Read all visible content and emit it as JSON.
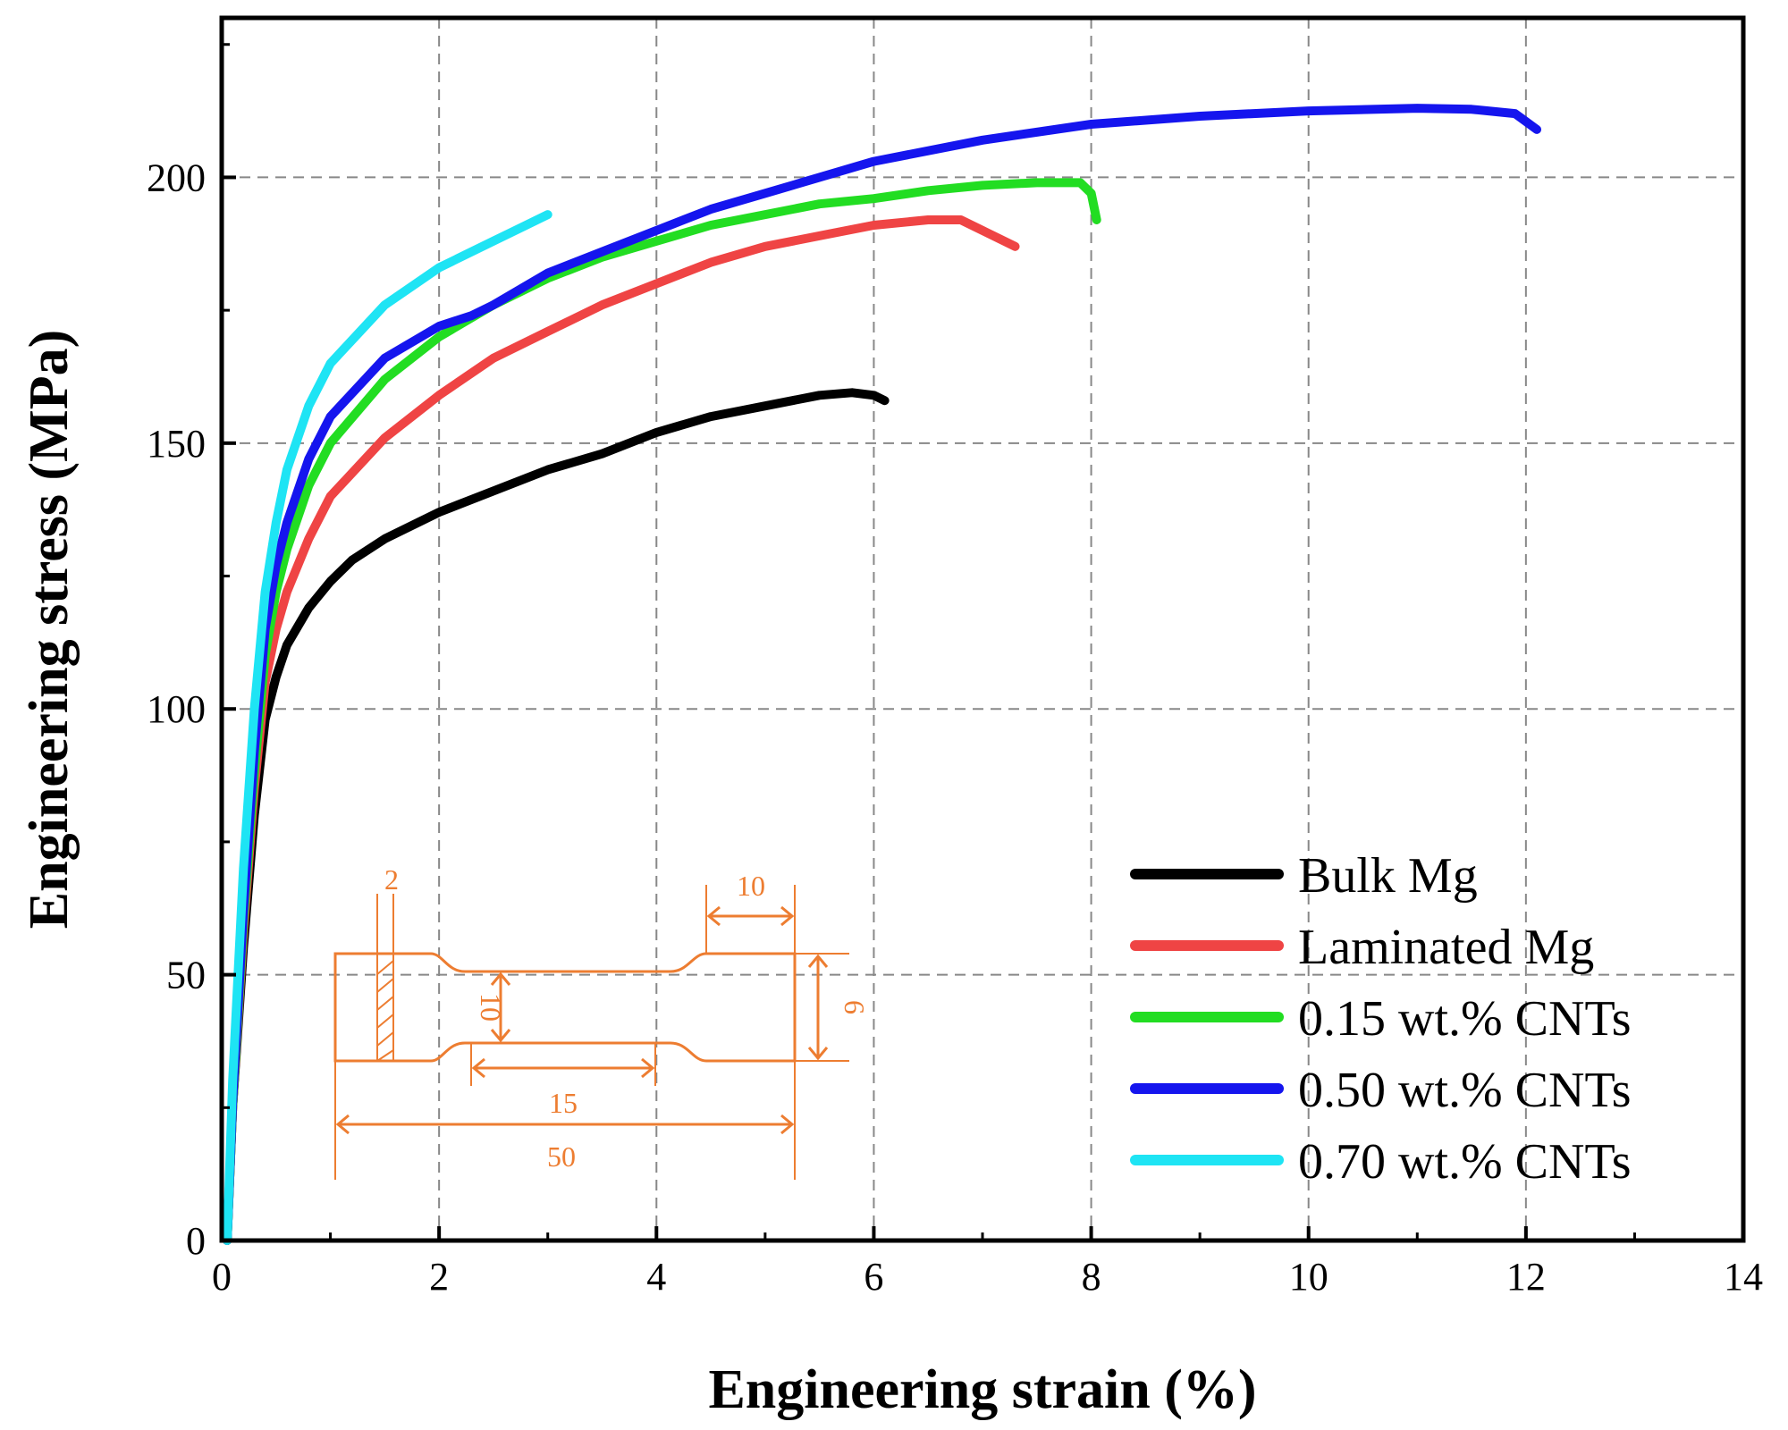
{
  "chart_data": {
    "type": "line",
    "title": "",
    "xlabel": "Engineering strain (%)",
    "ylabel": "Engineering stress (MPa)",
    "xlim": [
      0,
      14
    ],
    "ylim": [
      0,
      230
    ],
    "xticks": [
      "0",
      "2",
      "4",
      "6",
      "8",
      "10",
      "12",
      "14"
    ],
    "yticks": [
      "0",
      "50",
      "100",
      "150",
      "200"
    ],
    "grid": true,
    "legend_position": "bottom-right",
    "series": [
      {
        "name": "Bulk Mg",
        "color": "#000000",
        "points": [
          [
            0.05,
            0
          ],
          [
            0.1,
            25
          ],
          [
            0.2,
            55
          ],
          [
            0.3,
            80
          ],
          [
            0.4,
            98
          ],
          [
            0.5,
            106
          ],
          [
            0.6,
            112
          ],
          [
            0.8,
            119
          ],
          [
            1.0,
            124
          ],
          [
            1.2,
            128
          ],
          [
            1.5,
            132
          ],
          [
            2.0,
            137
          ],
          [
            2.5,
            141
          ],
          [
            3.0,
            145
          ],
          [
            3.5,
            148
          ],
          [
            4.0,
            152
          ],
          [
            4.5,
            155
          ],
          [
            5.0,
            157
          ],
          [
            5.5,
            159
          ],
          [
            5.8,
            159.5
          ],
          [
            6.0,
            159
          ],
          [
            6.1,
            158
          ]
        ]
      },
      {
        "name": "Laminated Mg",
        "color": "#ef4444",
        "points": [
          [
            0.05,
            0
          ],
          [
            0.1,
            25
          ],
          [
            0.2,
            58
          ],
          [
            0.3,
            85
          ],
          [
            0.4,
            105
          ],
          [
            0.5,
            115
          ],
          [
            0.6,
            122
          ],
          [
            0.8,
            132
          ],
          [
            1.0,
            140
          ],
          [
            1.5,
            151
          ],
          [
            2.0,
            159
          ],
          [
            2.5,
            166
          ],
          [
            3.0,
            171
          ],
          [
            3.5,
            176
          ],
          [
            4.0,
            180
          ],
          [
            4.5,
            184
          ],
          [
            5.0,
            187
          ],
          [
            5.5,
            189
          ],
          [
            6.0,
            191
          ],
          [
            6.5,
            192
          ],
          [
            6.8,
            192
          ],
          [
            7.0,
            190
          ],
          [
            7.3,
            187
          ]
        ]
      },
      {
        "name": "0.15 wt.% CNTs",
        "color": "#22dd22",
        "points": [
          [
            0.05,
            0
          ],
          [
            0.1,
            25
          ],
          [
            0.2,
            60
          ],
          [
            0.3,
            88
          ],
          [
            0.4,
            110
          ],
          [
            0.5,
            122
          ],
          [
            0.6,
            130
          ],
          [
            0.8,
            142
          ],
          [
            1.0,
            150
          ],
          [
            1.5,
            162
          ],
          [
            2.0,
            170
          ],
          [
            2.5,
            176
          ],
          [
            3.0,
            181
          ],
          [
            3.5,
            185
          ],
          [
            4.0,
            188
          ],
          [
            4.5,
            191
          ],
          [
            5.0,
            193
          ],
          [
            5.5,
            195
          ],
          [
            6.0,
            196
          ],
          [
            6.5,
            197.5
          ],
          [
            7.0,
            198.5
          ],
          [
            7.5,
            199
          ],
          [
            7.9,
            199
          ],
          [
            8.0,
            197
          ],
          [
            8.05,
            192
          ]
        ]
      },
      {
        "name": "0.50 wt.% CNTs",
        "color": "#1515ee",
        "points": [
          [
            0.05,
            0
          ],
          [
            0.1,
            26
          ],
          [
            0.2,
            62
          ],
          [
            0.3,
            92
          ],
          [
            0.4,
            115
          ],
          [
            0.5,
            127
          ],
          [
            0.6,
            135
          ],
          [
            0.8,
            147
          ],
          [
            1.0,
            155
          ],
          [
            1.5,
            166
          ],
          [
            2.0,
            172
          ],
          [
            2.3,
            174
          ],
          [
            2.5,
            176
          ],
          [
            3.0,
            182
          ],
          [
            3.5,
            186
          ],
          [
            4.0,
            190
          ],
          [
            4.5,
            194
          ],
          [
            5.0,
            197
          ],
          [
            6.0,
            203
          ],
          [
            7.0,
            207
          ],
          [
            8.0,
            210
          ],
          [
            9.0,
            211.5
          ],
          [
            10.0,
            212.5
          ],
          [
            11.0,
            213
          ],
          [
            11.5,
            212.8
          ],
          [
            11.9,
            212
          ],
          [
            12.1,
            209
          ]
        ]
      },
      {
        "name": "0.70 wt.% CNTs",
        "color": "#1ee4f4",
        "points": [
          [
            0.05,
            0
          ],
          [
            0.1,
            30
          ],
          [
            0.2,
            70
          ],
          [
            0.3,
            100
          ],
          [
            0.4,
            122
          ],
          [
            0.5,
            135
          ],
          [
            0.6,
            145
          ],
          [
            0.8,
            157
          ],
          [
            1.0,
            165
          ],
          [
            1.5,
            176
          ],
          [
            2.0,
            183
          ],
          [
            2.5,
            188
          ],
          [
            2.8,
            191
          ],
          [
            3.0,
            193
          ]
        ]
      }
    ],
    "inset": {
      "description": "specimen",
      "color": "#ed7d31",
      "labels": [
        "2",
        "10",
        "6",
        "10",
        "15",
        "50"
      ]
    }
  }
}
